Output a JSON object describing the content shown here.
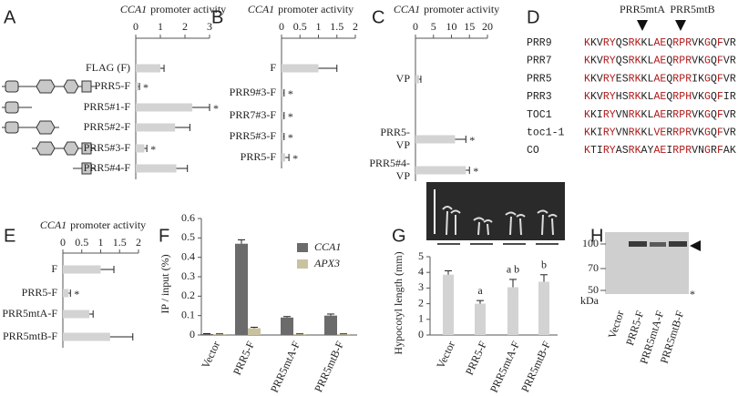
{
  "chart_data": [
    {
      "panel": "A",
      "type": "hbar",
      "title_gene": "CCA1",
      "title": "promoter activity",
      "categories": [
        "FLAG (F)",
        "PRR5-F",
        "PRR5#1-F",
        "PRR5#2-F",
        "PRR5#3-F",
        "PRR5#4-F"
      ],
      "values": [
        1.0,
        0.1,
        2.3,
        1.6,
        0.35,
        1.65
      ],
      "errors": [
        0.15,
        0.05,
        0.7,
        0.6,
        0.1,
        0.45
      ],
      "significance": [
        null,
        "*",
        "*",
        null,
        "*",
        null
      ],
      "color": "#d3d3d3",
      "xlim": [
        0,
        3
      ],
      "xticks": [
        0,
        1,
        2,
        3
      ]
    },
    {
      "panel": "B",
      "type": "hbar",
      "title_gene": "CCA1",
      "title": "promoter activity",
      "categories": [
        "F",
        "PRR9#3-F",
        "PRR7#3-F",
        "PRR5#3-F",
        "PRR5-F"
      ],
      "values": [
        1.0,
        0.05,
        0.05,
        0.05,
        0.1
      ],
      "errors": [
        0.5,
        0.02,
        0.02,
        0.02,
        0.1
      ],
      "significance": [
        null,
        "*",
        "*",
        "*",
        "*"
      ],
      "color": "#d3d3d3",
      "xlim": [
        0,
        2
      ],
      "xticks": [
        0,
        0.5,
        1,
        1.5,
        2
      ]
    },
    {
      "panel": "C",
      "type": "hbar",
      "title_gene": "CCA1",
      "title": "promoter activity",
      "categories": [
        "VP",
        "PRR5-VP",
        "PRR5#4-VP"
      ],
      "values": [
        1,
        11,
        14
      ],
      "errors": [
        0.5,
        3,
        1
      ],
      "significance": [
        null,
        "*",
        "*"
      ],
      "color": "#d3d3d3",
      "xlim": [
        0,
        20
      ],
      "xticks": [
        0,
        5,
        10,
        15,
        20
      ]
    },
    {
      "panel": "E",
      "type": "hbar",
      "title_gene": "CCA1",
      "title": "promoter activity",
      "categories": [
        "F",
        "PRR5-F",
        "PRR5mtA-F",
        "PRR5mtB-F"
      ],
      "values": [
        1.0,
        0.15,
        0.7,
        1.25
      ],
      "errors": [
        0.35,
        0.05,
        0.1,
        0.6
      ],
      "significance": [
        null,
        "*",
        null,
        null
      ],
      "color": "#d3d3d3",
      "xlim": [
        0,
        2
      ],
      "xticks": [
        0,
        0.5,
        1,
        1.5,
        2
      ]
    },
    {
      "panel": "F",
      "type": "bar",
      "ylabel": "IP / input (%)",
      "categories": [
        "Vector",
        "PRR5-F",
        "PRR5mtA-F",
        "PRR5mtB-F"
      ],
      "series": [
        {
          "name": "CCA1",
          "color": "#6b6b6b",
          "values": [
            0.005,
            0.47,
            0.09,
            0.1
          ],
          "errors": [
            0.002,
            0.02,
            0.005,
            0.008
          ]
        },
        {
          "name": "APX3",
          "color": "#c9c2a0",
          "values": [
            0.005,
            0.035,
            0.005,
            0.005
          ],
          "errors": [
            0.001,
            0.005,
            0.001,
            0.001
          ]
        }
      ],
      "ylim": [
        0,
        0.6
      ],
      "yticks": [
        0,
        0.1,
        0.2,
        0.3,
        0.4,
        0.5,
        0.6
      ]
    },
    {
      "panel": "G",
      "type": "bar",
      "ylabel": "Hypocotyl length (mm)",
      "categories": [
        "Vector",
        "PRR5-F",
        "PRR5mtA-F",
        "PRR5mtB-F"
      ],
      "values": [
        3.85,
        2.0,
        3.05,
        3.4
      ],
      "errors": [
        0.25,
        0.2,
        0.5,
        0.45
      ],
      "group_labels": [
        null,
        "a",
        "a b",
        "b"
      ],
      "color": "#d3d3d3",
      "ylim": [
        0,
        5
      ],
      "yticks": [
        0,
        1,
        2,
        3,
        4,
        5
      ]
    }
  ],
  "alignment": {
    "panel": "D",
    "mutations": [
      "PRR5mtA",
      "PRR5mtB"
    ],
    "highlight_color": "#b01818",
    "highlight_positions": [
      0,
      3,
      4,
      7,
      8,
      11,
      12,
      14,
      15,
      16,
      19,
      21
    ],
    "rows": [
      {
        "name": "PRR9",
        "sequence": "KKVRYQSRKKLAEQRPRVKGQFVR"
      },
      {
        "name": "PRR7",
        "sequence": "KKVRYQSRKKLAEQRPRVKGQFVR"
      },
      {
        "name": "PRR5",
        "sequence": "KKVRYESRKKLAEQRPRIKGQFVR"
      },
      {
        "name": "PRR3",
        "sequence": "KKVRYHSRKKLAEQRPHVKGQFIR"
      },
      {
        "name": "TOC1",
        "sequence": "KKIRYVNRKKLAERRPRVKGQFVR"
      },
      {
        "name": "toc1-1",
        "sequence": "KKIRYVNRKKLVERRPRVKGQFVR"
      },
      {
        "name": "CO",
        "sequence": "KTIRYASRKAYAEIRPRVNGRFAK"
      }
    ]
  },
  "blot": {
    "panel": "H",
    "mw_markers": [
      100,
      70,
      50
    ],
    "mw_unit": "kDa",
    "band_marker": "*",
    "lanes": [
      "Vector",
      "PRR5-F",
      "PRR5mtA-F",
      "PRR5mtB-F"
    ]
  }
}
